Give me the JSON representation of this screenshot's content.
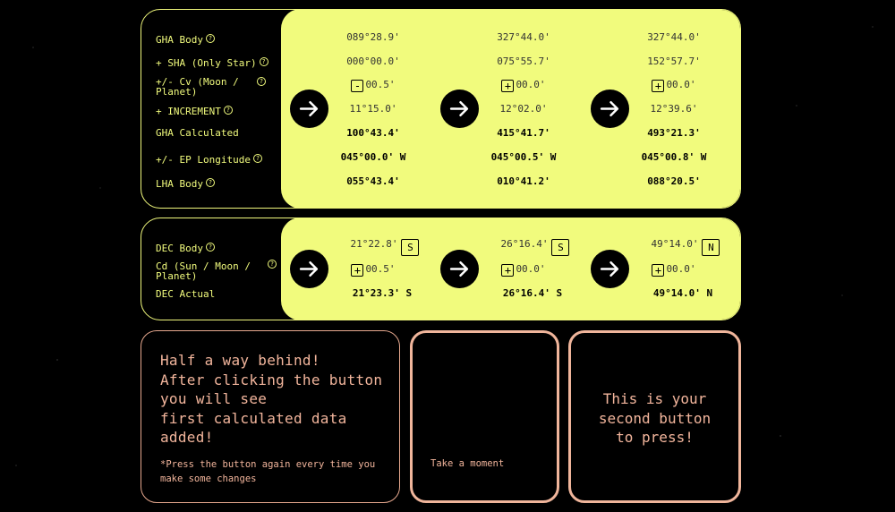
{
  "gha_panel": {
    "labels": {
      "gha_body": "GHA Body",
      "sha": "+ SHA (Only Star)",
      "cv": "+/- Cv (Moon / Planet)",
      "increment": "+ INCREMENT",
      "gha_calc": "GHA Calculated",
      "ep_long": "+/- EP Longitude",
      "lha_body": "LHA Body"
    },
    "columns": [
      {
        "gha_body": "089°28.9'",
        "sha": "000°00.0'",
        "cv_sign": "-",
        "cv_value": "00.5'",
        "increment": "11°15.0'",
        "gha_calc": "100°43.4'",
        "ep_long": "045°00.0' W",
        "lha_body": "055°43.4'"
      },
      {
        "gha_body": "327°44.0'",
        "sha": "075°55.7'",
        "cv_sign": "+",
        "cv_value": "00.0'",
        "increment": "12°02.0'",
        "gha_calc": "415°41.7'",
        "ep_long": "045°00.5' W",
        "lha_body": "010°41.2'"
      },
      {
        "gha_body": "327°44.0'",
        "sha": "152°57.7'",
        "cv_sign": "+",
        "cv_value": "00.0'",
        "increment": "12°39.6'",
        "gha_calc": "493°21.3'",
        "ep_long": "045°00.8' W",
        "lha_body": "088°20.5'"
      }
    ]
  },
  "dec_panel": {
    "labels": {
      "dec_body": "DEC Body",
      "cd": "Cd (Sun / Moon / Planet)",
      "dec_actual": "DEC Actual"
    },
    "columns": [
      {
        "dec_body": "21°22.8'",
        "hemi": "S",
        "cd_sign": "+",
        "cd_value": "00.5'",
        "dec_actual": "21°23.3' S"
      },
      {
        "dec_body": "26°16.4'",
        "hemi": "S",
        "cd_sign": "+",
        "cd_value": "00.0'",
        "dec_actual": "26°16.4' S"
      },
      {
        "dec_body": "49°14.0'",
        "hemi": "N",
        "cd_sign": "+",
        "cd_value": "00.0'",
        "dec_actual": "49°14.0' N"
      }
    ]
  },
  "help_glyph": "?",
  "info_boxes": {
    "box1_lines": [
      "Half a way behind!",
      "After clicking the button",
      "you will see",
      "first calculated data",
      "added!"
    ],
    "box1_note": "*Press the button again every time you make some changes",
    "box2_text": "Take a moment",
    "box3_lines": [
      "This is your",
      "second button",
      "to press!"
    ]
  },
  "colors": {
    "yellow": "#f1fb7d",
    "salmon": "#f2b59c",
    "background": "#000000"
  }
}
